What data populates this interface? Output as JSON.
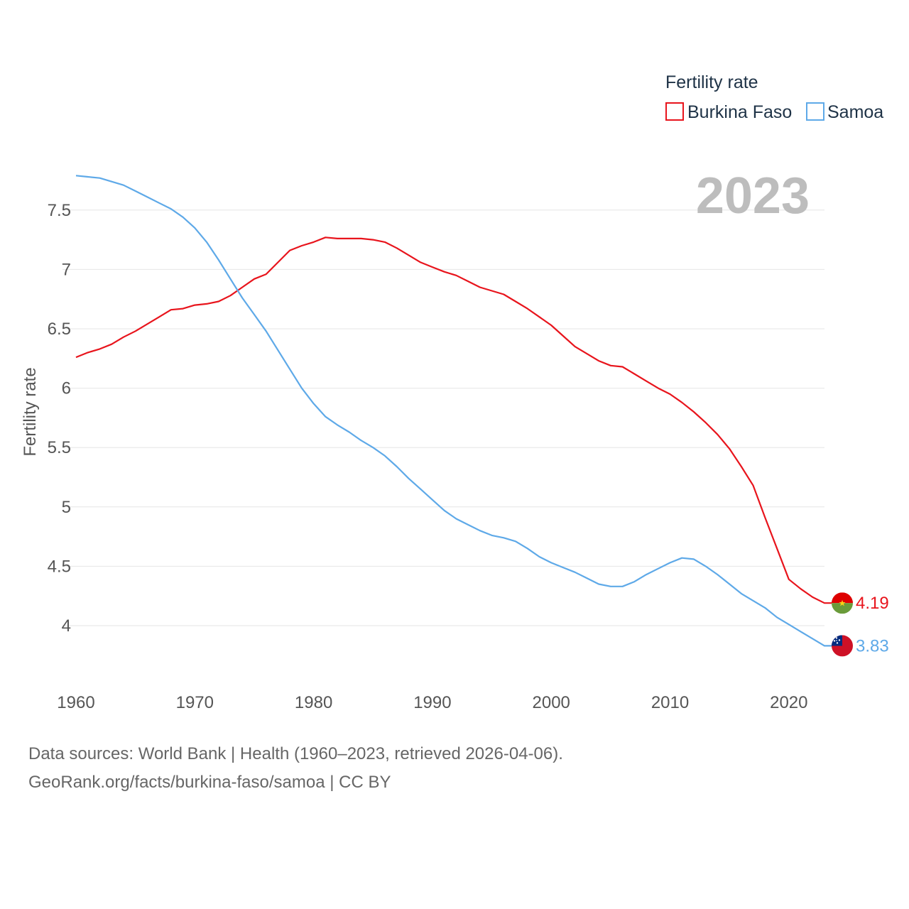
{
  "colors": {
    "burkina": "#e8141c",
    "samoa": "#5ea9e8",
    "grid": "#e6e6e6",
    "axis_text": "#555555",
    "legend_text": "#1e3246",
    "watermark": "#bdbdbd"
  },
  "legend": {
    "title": "Fertility rate",
    "items": [
      {
        "label": "Burkina Faso",
        "color": "#e8141c"
      },
      {
        "label": "Samoa",
        "color": "#5ea9e8"
      }
    ]
  },
  "year_watermark": "2023",
  "source": {
    "line1": "Data sources: World Bank | Health (1960–2023, retrieved 2026-04-06).",
    "line2": "GeoRank.org/facts/burkina-faso/samoa | CC BY"
  },
  "chart_data": {
    "type": "line",
    "title": "Fertility rate",
    "xlabel": "",
    "ylabel": "Fertility rate",
    "xlim": [
      1960,
      2023
    ],
    "ylim": [
      3.6,
      7.85
    ],
    "xticks": [
      1960,
      1970,
      1980,
      1990,
      2000,
      2010,
      2020
    ],
    "yticks": [
      4,
      4.5,
      5,
      5.5,
      6,
      6.5,
      7,
      7.5
    ],
    "ytick_labels": [
      "4",
      "4.5",
      "5",
      "5.5",
      "6",
      "6.5",
      "7",
      "7.5"
    ],
    "grid": true,
    "legend_position": "top-right",
    "x": [
      1960,
      1961,
      1962,
      1963,
      1964,
      1965,
      1966,
      1967,
      1968,
      1969,
      1970,
      1971,
      1972,
      1973,
      1974,
      1975,
      1976,
      1977,
      1978,
      1979,
      1980,
      1981,
      1982,
      1983,
      1984,
      1985,
      1986,
      1987,
      1988,
      1989,
      1990,
      1991,
      1992,
      1993,
      1994,
      1995,
      1996,
      1997,
      1998,
      1999,
      2000,
      2001,
      2002,
      2003,
      2004,
      2005,
      2006,
      2007,
      2008,
      2009,
      2010,
      2011,
      2012,
      2013,
      2014,
      2015,
      2016,
      2017,
      2018,
      2019,
      2020,
      2021,
      2022,
      2023
    ],
    "series": [
      {
        "name": "Burkina Faso",
        "end_label": "4.19",
        "values": [
          6.26,
          6.3,
          6.33,
          6.37,
          6.43,
          6.48,
          6.54,
          6.6,
          6.66,
          6.67,
          6.7,
          6.71,
          6.73,
          6.78,
          6.85,
          6.92,
          6.96,
          7.06,
          7.16,
          7.2,
          7.23,
          7.27,
          7.26,
          7.26,
          7.26,
          7.25,
          7.23,
          7.18,
          7.12,
          7.06,
          7.02,
          6.98,
          6.95,
          6.9,
          6.85,
          6.82,
          6.79,
          6.73,
          6.67,
          6.6,
          6.53,
          6.44,
          6.35,
          6.29,
          6.23,
          6.19,
          6.18,
          6.12,
          6.06,
          6.0,
          5.95,
          5.88,
          5.8,
          5.71,
          5.61,
          5.49,
          5.34,
          5.18,
          4.91,
          4.65,
          4.39,
          4.31,
          4.24,
          4.19
        ]
      },
      {
        "name": "Samoa",
        "end_label": "3.83",
        "values": [
          7.79,
          7.78,
          7.77,
          7.74,
          7.71,
          7.66,
          7.61,
          7.56,
          7.51,
          7.44,
          7.35,
          7.23,
          7.08,
          6.92,
          6.76,
          6.62,
          6.48,
          6.32,
          6.16,
          6.0,
          5.87,
          5.76,
          5.69,
          5.63,
          5.56,
          5.5,
          5.43,
          5.34,
          5.24,
          5.15,
          5.06,
          4.97,
          4.9,
          4.85,
          4.8,
          4.76,
          4.74,
          4.71,
          4.65,
          4.58,
          4.53,
          4.49,
          4.45,
          4.4,
          4.35,
          4.33,
          4.33,
          4.37,
          4.43,
          4.48,
          4.53,
          4.57,
          4.56,
          4.5,
          4.43,
          4.35,
          4.27,
          4.21,
          4.15,
          4.07,
          4.01,
          3.95,
          3.89,
          3.83
        ]
      }
    ]
  }
}
